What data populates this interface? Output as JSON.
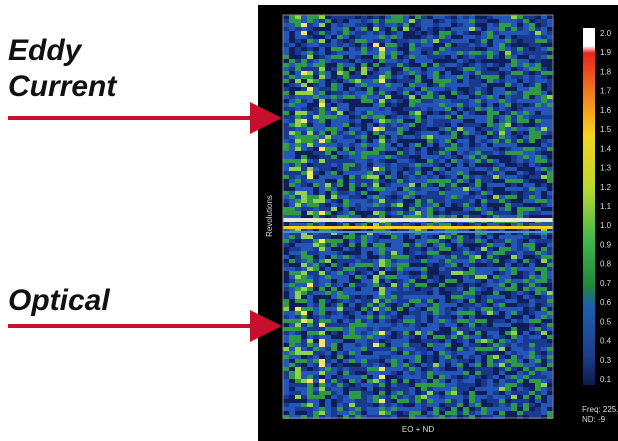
{
  "labels": {
    "eddy": [
      "Eddy",
      "Current"
    ],
    "optical": "Optical"
  },
  "plot": {
    "y_label": "Revolutions",
    "x_label": "EO + ND"
  },
  "colorbar": {
    "ticks": [
      "2.0",
      "1.9",
      "1.8",
      "1.7",
      "1.6",
      "1.5",
      "1.4",
      "1.3",
      "1.2",
      "1.1",
      "1.0",
      "0.9",
      "0.8",
      "0.7",
      "0.6",
      "0.5",
      "0.4",
      "0.3",
      "0.1"
    ]
  },
  "footer": {
    "freq": "Freq: 225.",
    "nd": "ND: -9"
  }
}
